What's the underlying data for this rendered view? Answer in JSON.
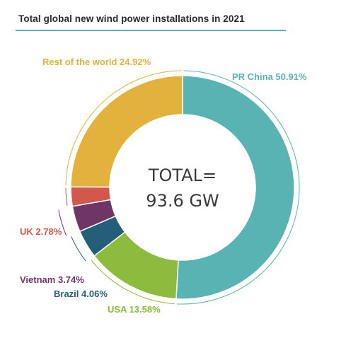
{
  "chart_data": {
    "type": "pie",
    "title": "Total global new wind power installations in 2021",
    "center_text": [
      "TOTAL=",
      "93.6 GW"
    ],
    "slices": [
      {
        "name": "PR China",
        "value": 50.91,
        "label": "PR China 50.91%",
        "color": "#5ab3b3"
      },
      {
        "name": "USA",
        "value": 13.58,
        "label": "USA 13.58%",
        "color": "#8cbb3e"
      },
      {
        "name": "Brazil",
        "value": 4.06,
        "label": "Brazil 4.06%",
        "color": "#245f7a"
      },
      {
        "name": "Vietnam",
        "value": 3.74,
        "label": "Vietnam 3.74%",
        "color": "#6e3566"
      },
      {
        "name": "UK",
        "value": 2.78,
        "label": "UK 2.78%",
        "color": "#d4574c"
      },
      {
        "name": "Rest of the world",
        "value": 24.92,
        "label": "Rest of the world 24.92%",
        "color": "#e3b23c"
      }
    ],
    "legend": "none"
  }
}
